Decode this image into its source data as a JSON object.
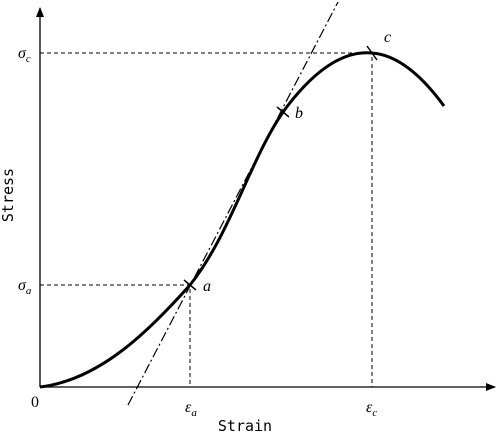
{
  "axes": {
    "x_label": "Strain",
    "y_label": "Stress",
    "origin": "0"
  },
  "points": [
    {
      "label": "a",
      "x_symbol": "ε",
      "x_sub": "a",
      "y_symbol": "σ",
      "y_sub": "a"
    },
    {
      "label": "b"
    },
    {
      "label": "c",
      "x_symbol": "ε",
      "x_sub": "c",
      "y_symbol": "σ",
      "y_sub": "c"
    }
  ]
}
